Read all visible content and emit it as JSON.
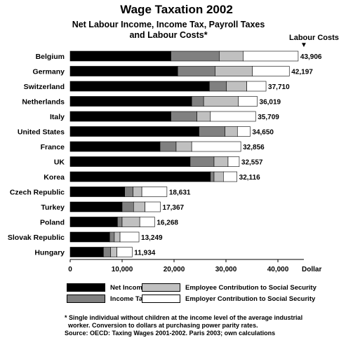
{
  "title": "Wage Taxation 2002",
  "subtitle_line1": "Net Labour Income, Income Tax, Payroll Taxes",
  "subtitle_line2": "and Labour Costs*",
  "cost_header": "Labour Costs",
  "cost_arrow": "▼",
  "footnote_line1": "* Single individual without children at the income level of the average industrial",
  "footnote_line2": "worker. Conversion to dollars at purchasing power parity rates.",
  "footnote_line3": "Source: OECD: Taxing Wages 2001-2002. Paris 2003; own calculations",
  "colors": {
    "net": "#000000",
    "tax": "#808080",
    "employee": "#c0c0c0",
    "employer": "#ffffff"
  },
  "chart_data": {
    "type": "bar",
    "orientation": "horizontal",
    "stacked": true,
    "xlabel": "Dollar",
    "xlim": [
      0,
      45000
    ],
    "xticks": [
      0,
      10000,
      20000,
      30000,
      40000
    ],
    "xtick_labels": [
      "0",
      "10,000",
      "20,000",
      "30,000",
      "40,000"
    ],
    "grid": false,
    "categories": [
      "Belgium",
      "Germany",
      "Switzerland",
      "Netherlands",
      "Italy",
      "United States",
      "France",
      "UK",
      "Korea",
      "Czech Republic",
      "Turkey",
      "Poland",
      "Slovak Republic",
      "Hungary"
    ],
    "series": [
      {
        "name": "Net Income",
        "values": [
          19400,
          20700,
          26800,
          23400,
          19400,
          24800,
          17300,
          23100,
          27000,
          10500,
          10000,
          9100,
          7600,
          6400
        ]
      },
      {
        "name": "Income Tax",
        "values": [
          9300,
          7200,
          3300,
          2300,
          5000,
          5000,
          3100,
          4600,
          700,
          1600,
          2200,
          900,
          900,
          1400
        ]
      },
      {
        "name": "Employee Contribution to Social Security",
        "values": [
          4600,
          7200,
          3900,
          6700,
          2600,
          2400,
          3000,
          2700,
          1800,
          1700,
          2200,
          3400,
          1100,
          1200
        ]
      },
      {
        "name": "Employer Contribution to Social Security",
        "values": [
          10606,
          7097,
          3710,
          3619,
          8709,
          2450,
          9456,
          2157,
          2616,
          4831,
          2967,
          2868,
          3649,
          2934
        ]
      }
    ],
    "totals": [
      43906,
      42197,
      37710,
      36019,
      35709,
      34650,
      32856,
      32557,
      32116,
      18631,
      17367,
      16268,
      13249,
      11934
    ],
    "total_labels": [
      "43,906",
      "42,197",
      "37,710",
      "36,019",
      "35,709",
      "34,650",
      "32,856",
      "32,557",
      "32,116",
      "18,631",
      "17,367",
      "16,268",
      "13,249",
      "11,934"
    ],
    "legend_placement": "bottom"
  }
}
